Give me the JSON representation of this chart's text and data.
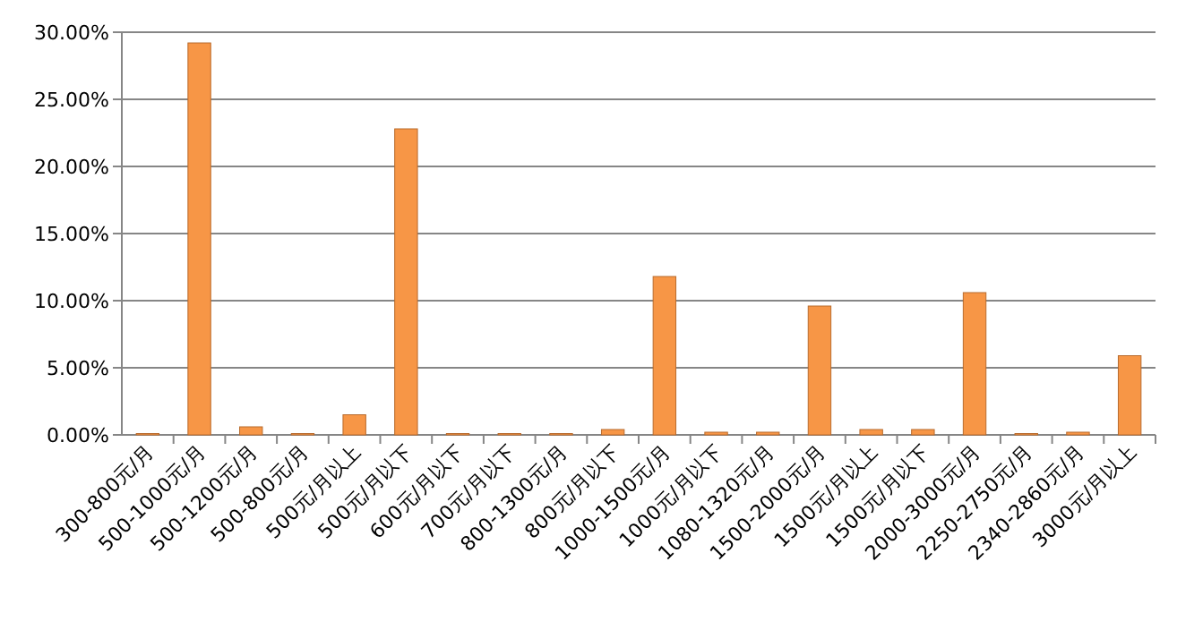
{
  "chart_data": {
    "type": "bar",
    "categories": [
      "300-800元/月",
      "500-1000元/月",
      "500-1200元/月",
      "500-800元/月",
      "500元/月以上",
      "500元/月以下",
      "600元/月以下",
      "700元/月以下",
      "800-1300元/月",
      "800元/月以下",
      "1000-1500元/月",
      "1000元/月以下",
      "1080-1320元/月",
      "1500-2000元/月",
      "1500元/月以上",
      "1500元/月以下",
      "2000-3000元/月",
      "2250-2750元/月",
      "2340-2860元/月",
      "3000元/月以上"
    ],
    "values": [
      0.1,
      29.2,
      0.6,
      0.1,
      1.5,
      22.8,
      0.1,
      0.1,
      0.1,
      0.4,
      11.8,
      0.2,
      0.2,
      9.6,
      0.4,
      0.4,
      10.6,
      0.1,
      0.2,
      5.9
    ],
    "color": "#f79646",
    "ylim": [
      0,
      30
    ],
    "yticks": [
      {
        "value": 0,
        "label": "0.00%"
      },
      {
        "value": 5,
        "label": "5.00%"
      },
      {
        "value": 10,
        "label": "10.00%"
      },
      {
        "value": 15,
        "label": "15.00%"
      },
      {
        "value": 20,
        "label": "20.00%"
      },
      {
        "value": 25,
        "label": "25.00%"
      },
      {
        "value": 30,
        "label": "30.00%"
      }
    ],
    "grid": "y"
  }
}
